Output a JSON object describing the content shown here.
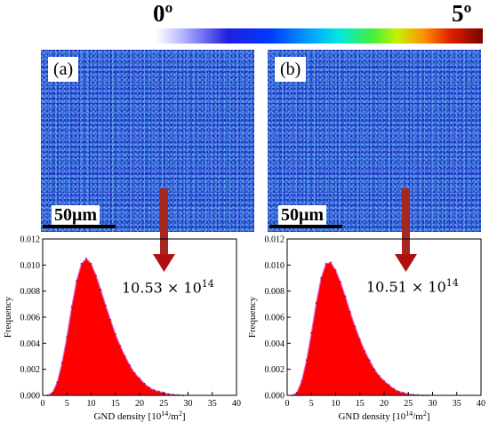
{
  "colorbar": {
    "min_label": "0º",
    "max_label": "5º"
  },
  "panels": [
    {
      "label": "(a)",
      "scalebar": "50μm",
      "annotation_base": "10.53 × 10",
      "annotation_exp": "14"
    },
    {
      "label": "(b)",
      "scalebar": "50μm",
      "annotation_base": "10.51 × 10",
      "annotation_exp": "14"
    }
  ],
  "colors": {
    "arrow": "#a6271f",
    "histogram_fill": "#ff0000",
    "histogram_outline": "#e060e0"
  },
  "chart_data": [
    {
      "type": "area",
      "xlabel": "GND density [10",
      "xlabel_sup": "14",
      "xlabel_tail": "/m",
      "xlabel_sup2": "2",
      "xlabel_end": "]",
      "ylabel": "Frequency",
      "xlim": [
        0,
        40
      ],
      "ylim": [
        0,
        0.012
      ],
      "xticks": [
        0,
        5,
        10,
        15,
        20,
        25,
        30,
        35,
        40
      ],
      "yticks": [
        0.0,
        0.002,
        0.004,
        0.006,
        0.008,
        0.01,
        0.012
      ],
      "x": [
        1,
        2,
        3,
        4,
        5,
        6,
        7,
        8,
        9,
        10,
        11,
        12,
        13,
        14,
        15,
        16,
        17,
        18,
        19,
        20,
        21,
        22,
        23,
        24,
        25,
        26,
        27,
        28,
        29
      ],
      "values": [
        0.0,
        0.0002,
        0.001,
        0.0025,
        0.0045,
        0.0068,
        0.0088,
        0.0101,
        0.0105,
        0.0101,
        0.0092,
        0.0081,
        0.0069,
        0.0058,
        0.0047,
        0.0038,
        0.003,
        0.0023,
        0.0017,
        0.0013,
        0.0009,
        0.0006,
        0.0004,
        0.0003,
        0.0002,
        0.0001,
        5e-05,
        2e-05,
        0.0
      ]
    },
    {
      "type": "area",
      "xlabel": "GND density [10",
      "xlabel_sup": "14",
      "xlabel_tail": "/m",
      "xlabel_sup2": "2",
      "xlabel_end": "]",
      "ylabel": "Frequency",
      "xlim": [
        0,
        40
      ],
      "ylim": [
        0,
        0.012
      ],
      "xticks": [
        0,
        5,
        10,
        15,
        20,
        25,
        30,
        35,
        40
      ],
      "yticks": [
        0.0,
        0.002,
        0.004,
        0.006,
        0.008,
        0.01,
        0.012
      ],
      "x": [
        1,
        2,
        3,
        4,
        5,
        6,
        7,
        8,
        9,
        10,
        11,
        12,
        13,
        14,
        15,
        16,
        17,
        18,
        19,
        20,
        21,
        22,
        23,
        24,
        25,
        26,
        27,
        28,
        29
      ],
      "values": [
        0.0,
        0.0002,
        0.0011,
        0.0027,
        0.0048,
        0.0071,
        0.009,
        0.0101,
        0.0102,
        0.0096,
        0.0087,
        0.0076,
        0.0064,
        0.0053,
        0.0043,
        0.0034,
        0.0027,
        0.002,
        0.0015,
        0.0011,
        0.0008,
        0.0005,
        0.0003,
        0.0002,
        0.0001,
        5e-05,
        2e-05,
        0.0,
        0.0
      ]
    }
  ]
}
